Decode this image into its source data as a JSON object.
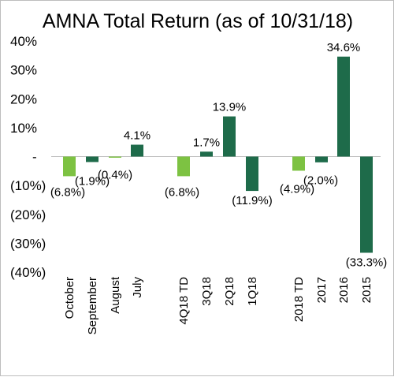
{
  "chart_data": {
    "type": "bar",
    "title": "AMNA Total Return (as of 10/31/18)",
    "xlabel": "",
    "ylabel": "",
    "ylim": [
      -40,
      40
    ],
    "yticks": [
      {
        "value": 40,
        "label": "40%"
      },
      {
        "value": 30,
        "label": "30%"
      },
      {
        "value": 20,
        "label": "20%"
      },
      {
        "value": 10,
        "label": "10%"
      },
      {
        "value": 0,
        "label": "-"
      },
      {
        "value": -10,
        "label": "(10%)"
      },
      {
        "value": -20,
        "label": "(20%)"
      },
      {
        "value": -30,
        "label": "(30%)"
      },
      {
        "value": -40,
        "label": "(40%)"
      }
    ],
    "grid": false,
    "legend": "none",
    "colors": {
      "light_green": "#7dc242",
      "dark_green": "#1e6b4a"
    },
    "bars": [
      {
        "category": "October",
        "value": -6.8,
        "label": "(6.8%)",
        "color": "light_green"
      },
      {
        "category": "September",
        "value": -1.9,
        "label": "(1.9%)",
        "color": "dark_green"
      },
      {
        "category": "August",
        "value": -0.4,
        "label": "(0.4%)",
        "color": "light_green"
      },
      {
        "category": "July",
        "value": 4.1,
        "label": "4.1%",
        "color": "dark_green"
      },
      {
        "category": "4Q18 TD",
        "value": -6.8,
        "label": "(6.8%)",
        "color": "light_green"
      },
      {
        "category": "3Q18",
        "value": 1.7,
        "label": "1.7%",
        "color": "dark_green"
      },
      {
        "category": "2Q18",
        "value": 13.9,
        "label": "13.9%",
        "color": "dark_green"
      },
      {
        "category": "1Q18",
        "value": -11.9,
        "label": "(11.9%)",
        "color": "dark_green"
      },
      {
        "category": "2018 TD",
        "value": -4.9,
        "label": "(4.9%)",
        "color": "light_green"
      },
      {
        "category": "2017",
        "value": -2.0,
        "label": "(2.0%)",
        "color": "dark_green"
      },
      {
        "category": "2016",
        "value": 34.6,
        "label": "34.6%",
        "color": "dark_green"
      },
      {
        "category": "2015",
        "value": -33.3,
        "label": "(33.3%)",
        "color": "dark_green"
      }
    ]
  }
}
